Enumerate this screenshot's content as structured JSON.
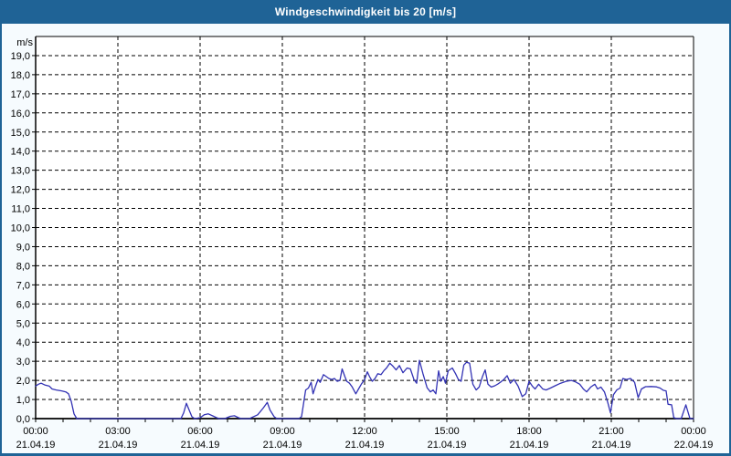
{
  "header": {
    "title": "Windgeschwindigkeit bis 20 [m/s]"
  },
  "colors": {
    "titlebar_bg": "#1f6396",
    "border_blue": "#1f6396",
    "title_text": "#ffffff",
    "page_bg": "#f6fbfe",
    "plot_bg": "#ffffff",
    "frame": "#000000",
    "grid": "#000000",
    "curve": "#3232b4",
    "label_text": "#000000"
  },
  "chart_data": {
    "type": "line",
    "title": "Windgeschwindigkeit bis 20 [m/s]",
    "ylabel": "m/s",
    "xlabel": "",
    "ylim": [
      0,
      20
    ],
    "grid": "dashed, horizontal every 1 m/s, vertical every 3 h",
    "legend": "none",
    "y_axis": {
      "unit_label": "m/s",
      "min": 0,
      "max": 20,
      "tick_step": 1,
      "tick_labels": [
        "0,0",
        "1,0",
        "2,0",
        "3,0",
        "4,0",
        "5,0",
        "6,0",
        "7,0",
        "8,0",
        "9,0",
        "10,0",
        "11,0",
        "12,0",
        "13,0",
        "14,0",
        "15,0",
        "16,0",
        "17,0",
        "18,0",
        "19,0"
      ]
    },
    "x_axis": {
      "span_hours": 24,
      "grid_step_hours": 3,
      "minor_tick_hours": 1,
      "tick_labels": [
        {
          "hour": 0,
          "time": "00:00",
          "date": "21.04.19"
        },
        {
          "hour": 3,
          "time": "03:00",
          "date": "21.04.19"
        },
        {
          "hour": 6,
          "time": "06:00",
          "date": "21.04.19"
        },
        {
          "hour": 9,
          "time": "09:00",
          "date": "21.04.19"
        },
        {
          "hour": 12,
          "time": "12:00",
          "date": "21.04.19"
        },
        {
          "hour": 15,
          "time": "15:00",
          "date": "21.04.19"
        },
        {
          "hour": 18,
          "time": "18:00",
          "date": "21.04.19"
        },
        {
          "hour": 21,
          "time": "21:00",
          "date": "21.04.19"
        },
        {
          "hour": 24,
          "time": "00:00",
          "date": "22.04.19"
        }
      ]
    },
    "series": [
      {
        "name": "Windgeschwindigkeit",
        "unit": "m/s",
        "color": "#3232b4",
        "points": [
          [
            0,
            1.7
          ],
          [
            0.1,
            1.8
          ],
          [
            0.2,
            1.85
          ],
          [
            0.35,
            1.75
          ],
          [
            0.5,
            1.7
          ],
          [
            0.6,
            1.55
          ],
          [
            0.75,
            1.5
          ],
          [
            0.95,
            1.45
          ],
          [
            1.1,
            1.4
          ],
          [
            1.2,
            1.3
          ],
          [
            1.3,
            0.9
          ],
          [
            1.4,
            0.25
          ],
          [
            1.5,
            0
          ],
          [
            2,
            0
          ],
          [
            2.5,
            0
          ],
          [
            3,
            0
          ],
          [
            3.5,
            0
          ],
          [
            4,
            0
          ],
          [
            4.5,
            0
          ],
          [
            5,
            0
          ],
          [
            5.3,
            0
          ],
          [
            5.4,
            0.3
          ],
          [
            5.5,
            0.8
          ],
          [
            5.6,
            0.45
          ],
          [
            5.7,
            0.1
          ],
          [
            5.8,
            0
          ],
          [
            6,
            0.05
          ],
          [
            6.15,
            0.2
          ],
          [
            6.3,
            0.25
          ],
          [
            6.45,
            0.15
          ],
          [
            6.6,
            0.05
          ],
          [
            6.7,
            0
          ],
          [
            6.9,
            0
          ],
          [
            7.1,
            0.12
          ],
          [
            7.25,
            0.15
          ],
          [
            7.4,
            0.05
          ],
          [
            7.5,
            0
          ],
          [
            7.8,
            0
          ],
          [
            8.1,
            0.2
          ],
          [
            8.3,
            0.55
          ],
          [
            8.45,
            0.85
          ],
          [
            8.55,
            0.45
          ],
          [
            8.7,
            0.1
          ],
          [
            8.8,
            0
          ],
          [
            9.2,
            0
          ],
          [
            9.6,
            0
          ],
          [
            9.7,
            0.1
          ],
          [
            9.85,
            1.5
          ],
          [
            9.95,
            1.6
          ],
          [
            10.05,
            1.9
          ],
          [
            10.12,
            1.3
          ],
          [
            10.2,
            1.65
          ],
          [
            10.3,
            2.05
          ],
          [
            10.38,
            1.9
          ],
          [
            10.5,
            2.3
          ],
          [
            10.6,
            2.2
          ],
          [
            10.7,
            2.1
          ],
          [
            10.8,
            2.05
          ],
          [
            10.9,
            2.1
          ],
          [
            11,
            1.95
          ],
          [
            11.1,
            2
          ],
          [
            11.18,
            2.6
          ],
          [
            11.28,
            2.2
          ],
          [
            11.35,
            1.95
          ],
          [
            11.45,
            1.85
          ],
          [
            11.55,
            1.65
          ],
          [
            11.68,
            1.3
          ],
          [
            11.78,
            1.55
          ],
          [
            11.88,
            1.8
          ],
          [
            12,
            2.05
          ],
          [
            12.1,
            2.45
          ],
          [
            12.18,
            2.2
          ],
          [
            12.28,
            1.95
          ],
          [
            12.38,
            2.1
          ],
          [
            12.48,
            2.35
          ],
          [
            12.6,
            2.3
          ],
          [
            12.7,
            2.5
          ],
          [
            12.8,
            2.65
          ],
          [
            12.92,
            2.9
          ],
          [
            13.03,
            2.75
          ],
          [
            13.15,
            2.55
          ],
          [
            13.27,
            2.78
          ],
          [
            13.4,
            2.4
          ],
          [
            13.55,
            2.65
          ],
          [
            13.67,
            2.6
          ],
          [
            13.8,
            2.05
          ],
          [
            13.9,
            1.85
          ],
          [
            14,
            3.05
          ],
          [
            14.13,
            2.35
          ],
          [
            14.28,
            1.62
          ],
          [
            14.4,
            1.4
          ],
          [
            14.5,
            1.5
          ],
          [
            14.6,
            1.3
          ],
          [
            14.7,
            2.5
          ],
          [
            14.78,
            1.95
          ],
          [
            14.87,
            2.2
          ],
          [
            14.95,
            1.85
          ],
          [
            15.05,
            2.5
          ],
          [
            15.2,
            2.65
          ],
          [
            15.32,
            2.35
          ],
          [
            15.42,
            2.05
          ],
          [
            15.52,
            1.95
          ],
          [
            15.62,
            2.8
          ],
          [
            15.72,
            2.95
          ],
          [
            15.83,
            2.9
          ],
          [
            15.95,
            1.8
          ],
          [
            16.07,
            1.5
          ],
          [
            16.18,
            1.65
          ],
          [
            16.3,
            2.2
          ],
          [
            16.4,
            2.55
          ],
          [
            16.5,
            1.8
          ],
          [
            16.62,
            1.65
          ],
          [
            16.75,
            1.72
          ],
          [
            16.87,
            1.82
          ],
          [
            16.97,
            1.92
          ],
          [
            17.08,
            2.05
          ],
          [
            17.2,
            2.25
          ],
          [
            17.32,
            1.85
          ],
          [
            17.45,
            2.05
          ],
          [
            17.6,
            1.7
          ],
          [
            17.75,
            1.15
          ],
          [
            17.88,
            1.3
          ],
          [
            18,
            1.95
          ],
          [
            18.12,
            1.7
          ],
          [
            18.22,
            1.55
          ],
          [
            18.35,
            1.8
          ],
          [
            18.5,
            1.55
          ],
          [
            18.62,
            1.5
          ],
          [
            18.78,
            1.6
          ],
          [
            18.95,
            1.72
          ],
          [
            19.15,
            1.85
          ],
          [
            19.35,
            1.95
          ],
          [
            19.55,
            2
          ],
          [
            19.7,
            1.92
          ],
          [
            19.85,
            1.8
          ],
          [
            19.98,
            1.55
          ],
          [
            20.1,
            1.4
          ],
          [
            20.25,
            1.65
          ],
          [
            20.4,
            1.8
          ],
          [
            20.5,
            1.55
          ],
          [
            20.62,
            1.65
          ],
          [
            20.75,
            1.4
          ],
          [
            20.87,
            0.85
          ],
          [
            20.97,
            0.3
          ],
          [
            21.08,
            1.25
          ],
          [
            21.2,
            1.5
          ],
          [
            21.32,
            1.6
          ],
          [
            21.42,
            2.1
          ],
          [
            21.55,
            2.05
          ],
          [
            21.7,
            2.1
          ],
          [
            21.85,
            1.9
          ],
          [
            21.98,
            1.1
          ],
          [
            22.1,
            1.55
          ],
          [
            22.25,
            1.67
          ],
          [
            22.45,
            1.68
          ],
          [
            22.65,
            1.66
          ],
          [
            22.78,
            1.6
          ],
          [
            22.9,
            1.48
          ],
          [
            23,
            1.45
          ],
          [
            23.07,
            0.75
          ],
          [
            23.2,
            0.72
          ],
          [
            23.28,
            0.05
          ],
          [
            23.4,
            0
          ],
          [
            23.55,
            0
          ],
          [
            23.72,
            0.72
          ],
          [
            23.87,
            0
          ],
          [
            24,
            0
          ]
        ]
      }
    ]
  }
}
